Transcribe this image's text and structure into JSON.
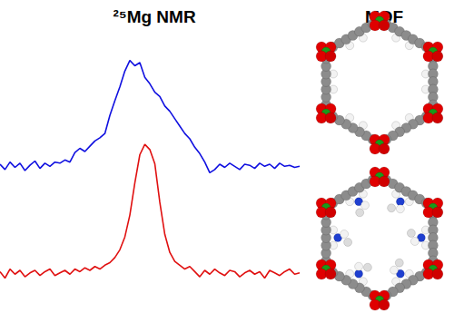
{
  "headings": {
    "left": "²⁵Mg NMR",
    "right": "MOF"
  },
  "chart_data": [
    {
      "type": "line",
      "color": "#1010e0",
      "grid": false,
      "tick_labels": false,
      "xlim": [
        0,
        60
      ],
      "ylim": [
        -10,
        110
      ],
      "x": [
        0,
        1,
        2,
        3,
        4,
        5,
        6,
        7,
        8,
        9,
        10,
        11,
        12,
        13,
        14,
        15,
        16,
        17,
        18,
        19,
        20,
        21,
        22,
        23,
        24,
        25,
        26,
        27,
        28,
        29,
        30,
        31,
        32,
        33,
        34,
        35,
        36,
        37,
        38,
        39,
        40,
        41,
        42,
        43,
        44,
        45,
        46,
        47,
        48,
        49,
        50,
        51,
        52,
        53,
        54,
        55,
        56,
        57,
        58,
        59,
        60
      ],
      "values": [
        2,
        -3,
        4,
        -1,
        3,
        -4,
        1,
        5,
        -2,
        3,
        0,
        4,
        3,
        6,
        4,
        13,
        17,
        14,
        19,
        24,
        27,
        31,
        48,
        62,
        75,
        90,
        100,
        95,
        98,
        84,
        78,
        70,
        66,
        57,
        52,
        45,
        38,
        31,
        26,
        18,
        12,
        4,
        -6,
        -3,
        2,
        -1,
        3,
        0,
        -3,
        2,
        1,
        -2,
        3,
        0,
        2,
        -2,
        3,
        0,
        1,
        -1,
        0
      ]
    },
    {
      "type": "line",
      "color": "#e01010",
      "grid": false,
      "tick_labels": false,
      "xlim": [
        0,
        60
      ],
      "ylim": [
        -10,
        110
      ],
      "x": [
        0,
        1,
        2,
        3,
        4,
        5,
        6,
        7,
        8,
        9,
        10,
        11,
        12,
        13,
        14,
        15,
        16,
        17,
        18,
        19,
        20,
        21,
        22,
        23,
        24,
        25,
        26,
        27,
        28,
        29,
        30,
        31,
        32,
        33,
        34,
        35,
        36,
        37,
        38,
        39,
        40,
        41,
        42,
        43,
        44,
        45,
        46,
        47,
        48,
        49,
        50,
        51,
        52,
        53,
        54,
        55,
        56,
        57,
        58,
        59,
        60
      ],
      "values": [
        1,
        -4,
        3,
        -1,
        2,
        -3,
        0,
        2,
        -2,
        1,
        3,
        -2,
        0,
        2,
        -1,
        3,
        1,
        4,
        2,
        5,
        3,
        6,
        8,
        12,
        18,
        28,
        45,
        70,
        92,
        100,
        96,
        85,
        55,
        30,
        16,
        9,
        6,
        3,
        5,
        1,
        -3,
        2,
        -1,
        3,
        0,
        -2,
        2,
        1,
        -3,
        0,
        2,
        -1,
        1,
        -4,
        2,
        0,
        -2,
        1,
        3,
        -1,
        0
      ]
    }
  ]
}
